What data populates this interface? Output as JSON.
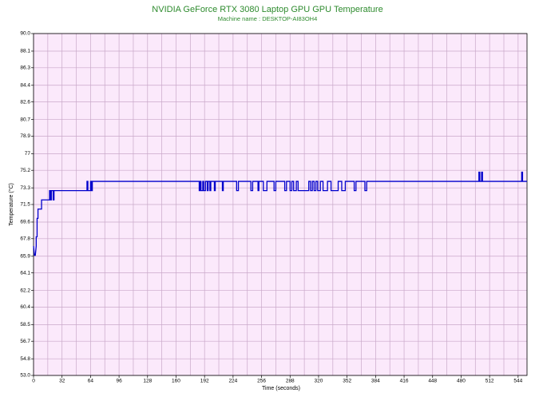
{
  "chart_data": {
    "type": "line",
    "title": "NVIDIA GeForce RTX 3080 Laptop GPU GPU Temperature",
    "subtitle": "Machine name : DESKTOP-AI83OH4",
    "x_label": "Time (seconds)",
    "y_label": "Temperature (°C)",
    "xlim": [
      0,
      554
    ],
    "ylim": [
      53,
      90
    ],
    "xticks": [
      0,
      32,
      64,
      96,
      128,
      160,
      192,
      224,
      256,
      288,
      320,
      352,
      384,
      416,
      448,
      480,
      512,
      544
    ],
    "yticks": [
      {
        "value": 53,
        "label": "53.0"
      },
      54.8,
      56.7,
      58.5,
      60.4,
      62.2,
      64.1,
      65.9,
      67.8,
      69.6,
      71.5,
      73.3,
      75.2,
      77.0,
      78.9,
      80.7,
      82.6,
      84.4,
      86.3,
      88.1,
      {
        "value": 90,
        "label": "90.0"
      }
    ],
    "grid": true,
    "minor_grid": true,
    "x": [
      0,
      1,
      2,
      3,
      3,
      4,
      4,
      5,
      5,
      9,
      9,
      18,
      18,
      19,
      19,
      20,
      20,
      22,
      22,
      23,
      23,
      60,
      60,
      61,
      61,
      64,
      64,
      65,
      65,
      66,
      66,
      186,
      186,
      187,
      187,
      188,
      188,
      190,
      190,
      191,
      191,
      193,
      193,
      195,
      195,
      196,
      196,
      198,
      198,
      199,
      199,
      203,
      203,
      204,
      204,
      212,
      212,
      213,
      213,
      228,
      228,
      230,
      230,
      244,
      244,
      246,
      246,
      252,
      252,
      253,
      253,
      258,
      258,
      262,
      262,
      270,
      270,
      272,
      272,
      282,
      282,
      284,
      284,
      288,
      288,
      290,
      290,
      292,
      292,
      295,
      295,
      297,
      297,
      309,
      309,
      311,
      311,
      313,
      313,
      315,
      315,
      317,
      317,
      319,
      319,
      322,
      322,
      325,
      325,
      330,
      330,
      334,
      334,
      342,
      342,
      346,
      346,
      350,
      350,
      360,
      360,
      362,
      362,
      372,
      372,
      374,
      374,
      500,
      500,
      501,
      501,
      503,
      503,
      504,
      504,
      548,
      548,
      549,
      549,
      554
    ],
    "series": [
      {
        "name": "GPU Temperature",
        "color": "#0000cc",
        "values": [
          67,
          66,
          66,
          67,
          68,
          68,
          70,
          70,
          71,
          71,
          72,
          72,
          73,
          73,
          72,
          72,
          73,
          73,
          72,
          72,
          73,
          73,
          74,
          74,
          73,
          73,
          74,
          74,
          73,
          73,
          74,
          74,
          73,
          73,
          74,
          74,
          73,
          73,
          74,
          74,
          73,
          73,
          74,
          74,
          73,
          73,
          74,
          74,
          73,
          73,
          74,
          74,
          73,
          73,
          74,
          74,
          73,
          73,
          74,
          74,
          73,
          73,
          74,
          74,
          73,
          73,
          74,
          74,
          73,
          73,
          74,
          74,
          73,
          73,
          74,
          74,
          73,
          73,
          74,
          74,
          73,
          73,
          74,
          74,
          73,
          73,
          74,
          74,
          73,
          73,
          74,
          74,
          73,
          73,
          74,
          74,
          73,
          73,
          74,
          74,
          73,
          73,
          74,
          74,
          73,
          73,
          74,
          74,
          73,
          73,
          74,
          74,
          73,
          73,
          74,
          74,
          73,
          73,
          74,
          74,
          73,
          73,
          74,
          74,
          73,
          73,
          74,
          74,
          75,
          75,
          74,
          74,
          75,
          75,
          74,
          74,
          75,
          75,
          74,
          74
        ]
      }
    ]
  }
}
